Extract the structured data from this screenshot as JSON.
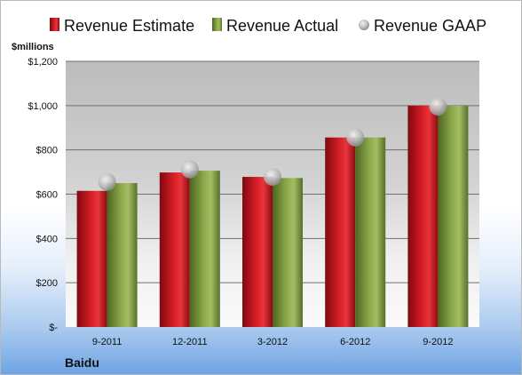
{
  "chart_data": {
    "type": "bar",
    "ylabel": "$millions",
    "company": "Baidu",
    "categories": [
      "9-2011",
      "12-2011",
      "3-2012",
      "6-2012",
      "9-2012"
    ],
    "series": [
      {
        "name": "Revenue Estimate",
        "kind": "bar",
        "color": "#c8141c",
        "values": [
          615,
          698,
          678,
          856,
          1000
        ]
      },
      {
        "name": "Revenue Actual",
        "kind": "bar",
        "color": "#7d9a3c",
        "values": [
          650,
          706,
          673,
          856,
          1000
        ]
      },
      {
        "name": "Revenue GAAP",
        "kind": "marker",
        "color": "#b8b8b8",
        "values": [
          655,
          712,
          678,
          856,
          995
        ]
      }
    ],
    "y_ticks": [
      0,
      200,
      400,
      600,
      800,
      1000,
      1200
    ],
    "y_tick_labels": [
      "$-",
      "$200",
      "$400",
      "$600",
      "$800",
      "$1,000",
      "$1,200"
    ],
    "ylim": [
      0,
      1200
    ],
    "grid": true,
    "legend_position": "top"
  }
}
